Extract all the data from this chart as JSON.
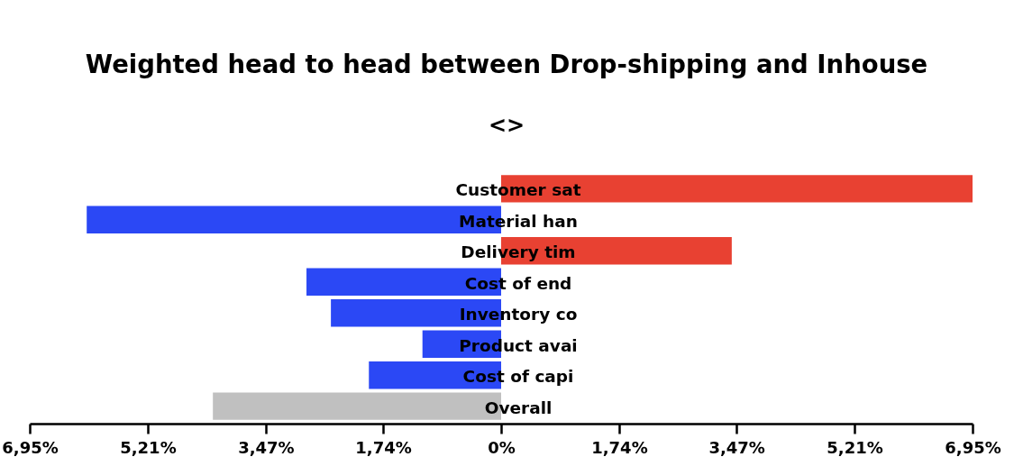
{
  "chart_data": {
    "type": "bar",
    "orientation": "horizontal",
    "title": "Weighted head to head between Drop-shipping and Inhouse",
    "subtitle": "<>",
    "categories": [
      "Customer sat",
      "Material han",
      "Delivery tim",
      "Cost of end",
      "Inventory co",
      "Product avai",
      "Cost of capi",
      "Overall"
    ],
    "values": [
      6.95,
      -6.11,
      3.4,
      -2.87,
      -2.51,
      -1.16,
      -1.95,
      -4.25
    ],
    "colors": [
      "#e84132",
      "#2b48f5",
      "#e84132",
      "#2b48f5",
      "#2b48f5",
      "#2b48f5",
      "#2b48f5",
      "#c0c0c0"
    ],
    "xlim": [
      -6.95,
      6.95
    ],
    "xticks": [
      {
        "value": -6.95,
        "label": "6,95%"
      },
      {
        "value": -5.21,
        "label": "5,21%"
      },
      {
        "value": -3.47,
        "label": "3,47%"
      },
      {
        "value": -1.74,
        "label": "1,74%"
      },
      {
        "value": 0,
        "label": "0%"
      },
      {
        "value": 1.74,
        "label": "1,74%"
      },
      {
        "value": 3.47,
        "label": "3,47%"
      },
      {
        "value": 5.21,
        "label": "5,21%"
      },
      {
        "value": 6.95,
        "label": "6,95%"
      }
    ]
  }
}
